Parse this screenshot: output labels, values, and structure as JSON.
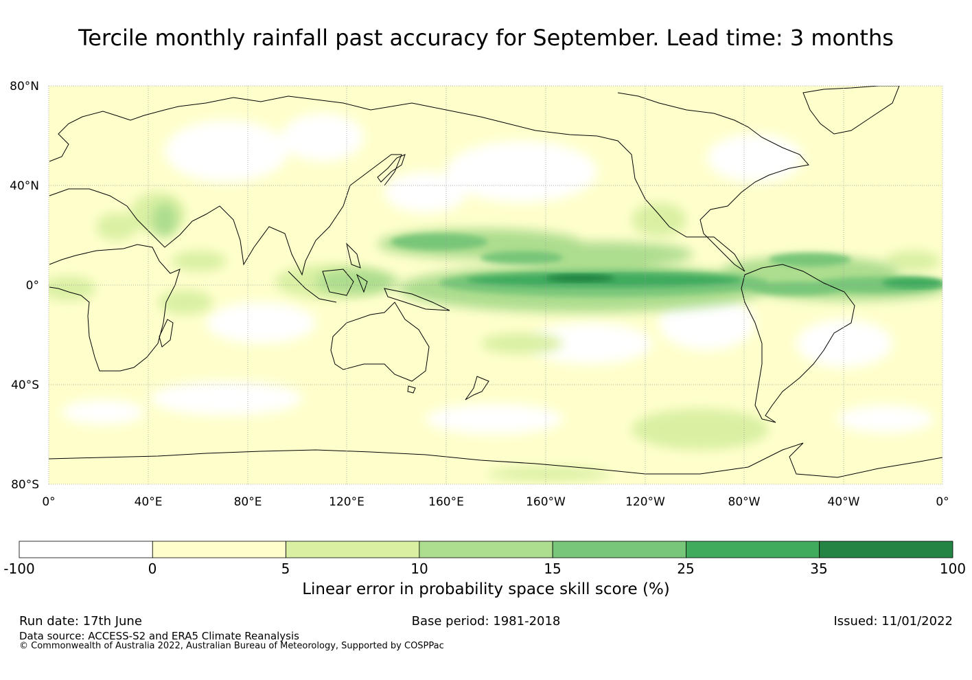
{
  "title": "Tercile monthly rainfall past accuracy for September. Lead time: 3 months",
  "map": {
    "lat_labels": [
      "80°N",
      "40°N",
      "0°",
      "40°S",
      "80°S"
    ],
    "lon_labels": [
      "0°",
      "40°E",
      "80°E",
      "120°E",
      "160°E",
      "160°W",
      "120°W",
      "80°W",
      "40°W",
      "0°"
    ],
    "land_outline_color": "#000000",
    "grid_color": "#9a9a9a",
    "skill_bands": [
      {
        "region": "equatorial-pacific",
        "level": "25-35"
      },
      {
        "region": "central-pacific-core",
        "level": "35-100"
      },
      {
        "region": "north-tropical-pacific",
        "level": "15-25"
      },
      {
        "region": "tropical-atlantic",
        "level": "15-25"
      },
      {
        "region": "maritime-continent",
        "level": "10-15"
      },
      {
        "region": "global-background",
        "level": "0-5"
      }
    ]
  },
  "colorbar": {
    "ticks": [
      "-100",
      "0",
      "5",
      "10",
      "15",
      "25",
      "35",
      "100"
    ],
    "colors": [
      "#ffffff",
      "#ffffcc",
      "#d9f0a3",
      "#addd8e",
      "#78c679",
      "#41ab5d",
      "#238443"
    ],
    "label": "Linear error in probability space skill score (%)"
  },
  "footer": {
    "run_date": "Run date: 17th June",
    "base_period": "Base period: 1981-2018",
    "issued": "Issued: 11/01/2022",
    "data_source": "Data source: ACCESS-S2 and ERA5 Climate Reanalysis",
    "copyright": "© Commonwealth of Australia 2022, Australian Bureau of Meteorology, Supported by COSPPac"
  }
}
